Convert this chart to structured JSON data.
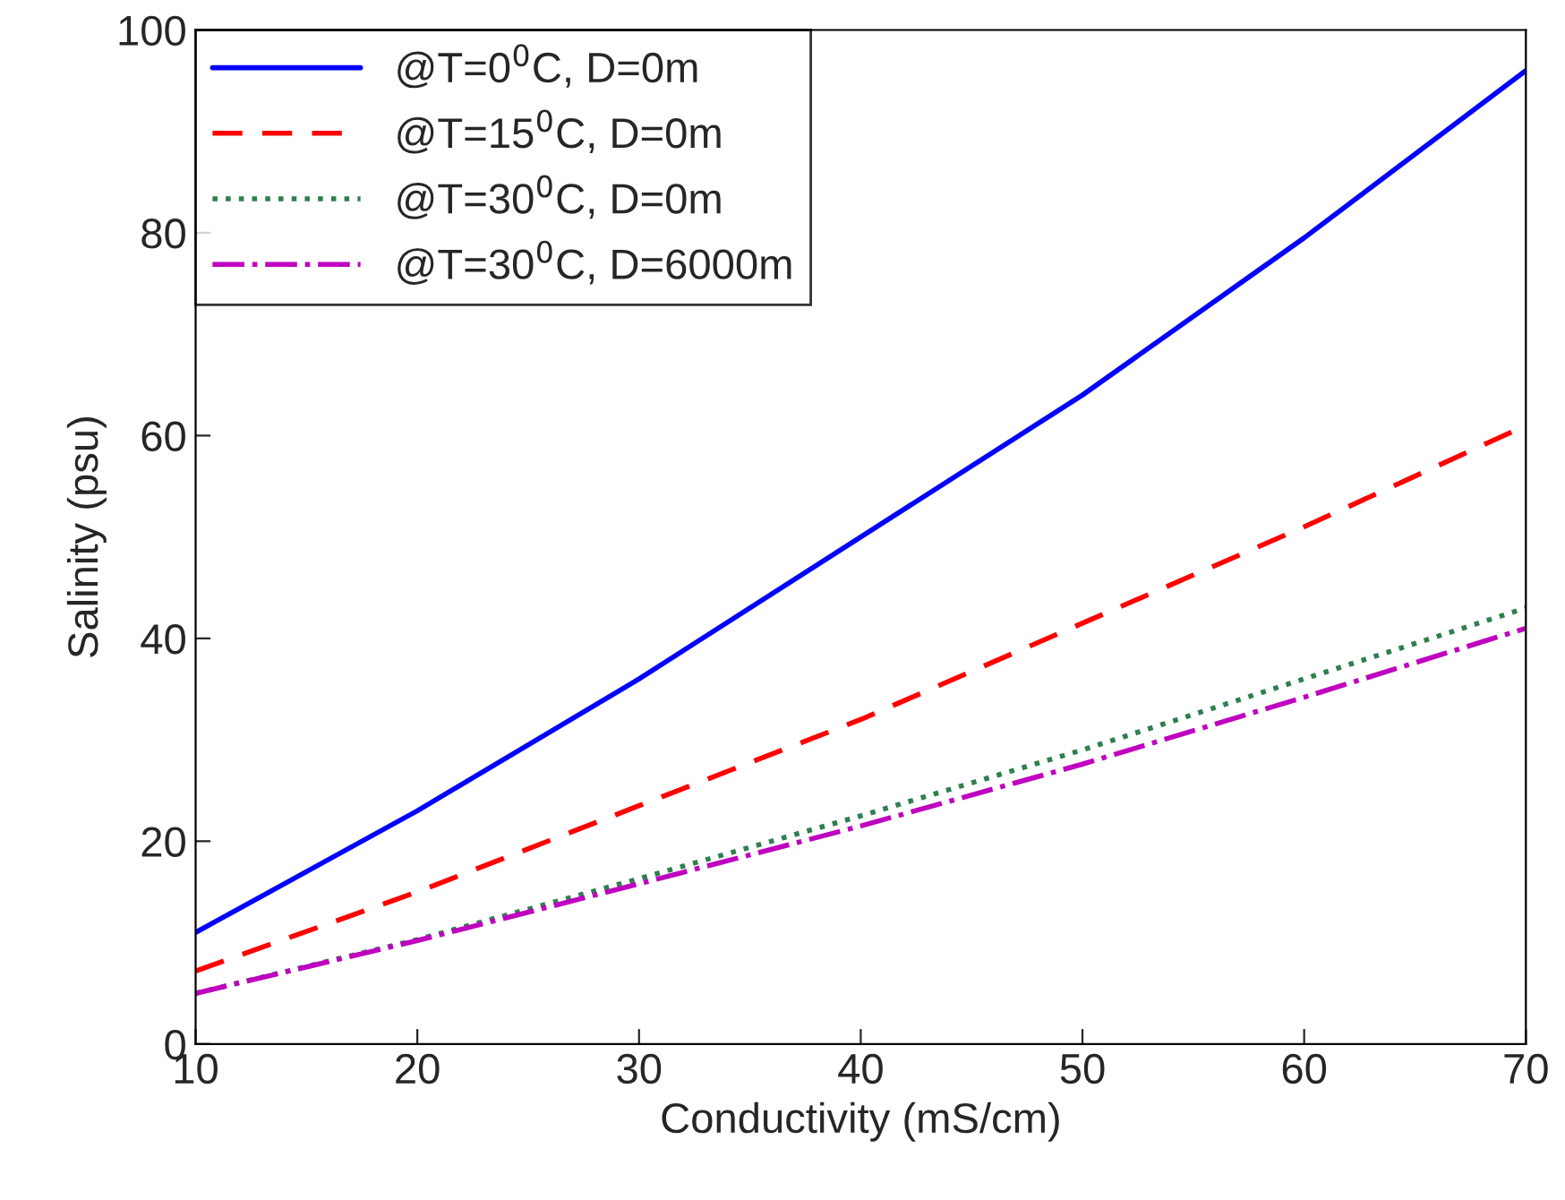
{
  "chart_data": {
    "type": "line",
    "xlabel": "Conductivity (mS/cm)",
    "ylabel": "Salinity (psu)",
    "x": [
      10,
      20,
      30,
      40,
      50,
      60,
      70
    ],
    "series": [
      {
        "name": "@T=0$^{0}$C, D=0m",
        "color": "#0000ff",
        "line_style": "solid",
        "values": [
          11,
          23,
          36,
          50,
          64,
          79.5,
          96
        ]
      },
      {
        "name": "@T=15$^{0}$C, D=0m",
        "color": "#ff0000",
        "line_style": "dashed",
        "values": [
          7.2,
          15,
          23.5,
          32,
          41.5,
          51,
          61
        ]
      },
      {
        "name": "@T=30$^{0}$C, D=0m",
        "color": "#2f7f4f",
        "line_style": "dotted",
        "values": [
          5,
          10.3,
          16.3,
          22.5,
          29,
          36,
          43
        ]
      },
      {
        "name": "@T=30$^{0}$C, D=6000m",
        "color": "#bf00bf",
        "line_style": "dashdot",
        "values": [
          5,
          10.2,
          15.8,
          21.5,
          27.6,
          34.2,
          41
        ]
      }
    ],
    "xlim": [
      10,
      70
    ],
    "xticks": [
      10,
      20,
      30,
      40,
      50,
      60,
      70
    ],
    "ylim": [
      0,
      100
    ],
    "yticks": [
      0,
      20,
      40,
      60,
      80,
      100
    ],
    "grid": false,
    "legend": "top left"
  }
}
